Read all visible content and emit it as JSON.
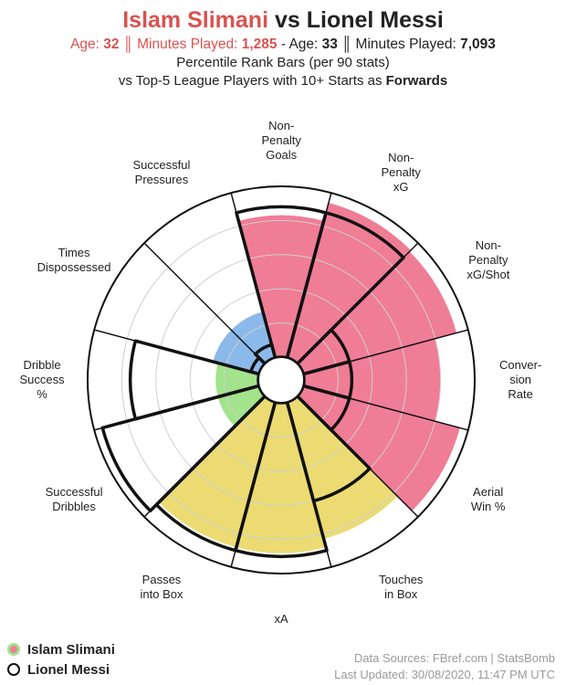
{
  "header": {
    "player1": "Islam Slimani",
    "vs": "vs",
    "player2": "Lionel Messi",
    "age_label": "Age:",
    "p1_age": "32",
    "sep": "║",
    "minutes_label": "Minutes Played:",
    "p1_minutes": "1,285",
    "dash": "-",
    "p2_age": "33",
    "p2_minutes": "7,093",
    "line3": "Percentile Rank Bars (per 90 stats)",
    "line4_prefix": "vs Top-5 League Players with 10+ Starts as",
    "line4_bold": "Forwards"
  },
  "chart_data": {
    "type": "radar",
    "title": "Islam Slimani vs Lionel Messi",
    "scale": [
      0,
      100
    ],
    "categories": [
      "Non-Penalty Goals",
      "Non-Penalty xG",
      "Non-Penalty xG/Shot",
      "Conversion Rate",
      "Aerial Win %",
      "Touches in Box",
      "xA",
      "Passes into Box",
      "Successful Dribbles",
      "Dribble Success %",
      "Times Dispossessed",
      "Successful Pressures"
    ],
    "labels": [
      "Non-\nPenalty\nGoals",
      "Non-\nPenalty\nxG",
      "Non-\nPenalty\nxG/Shot",
      "Conver-\nsion\nRate",
      "Aerial\nWin %",
      "Touches\nin Box",
      "xA",
      "Passes\ninto Box",
      "Successful\nDribbles",
      "Dribble\nSuccess\n%",
      "Times\nDispossessed",
      "Successful\nPressures"
    ],
    "group_colors": [
      "#f07d96",
      "#f07d96",
      "#f07d96",
      "#f07d96",
      "#f07d96",
      "#ebdb72",
      "#ebdb72",
      "#ebdb72",
      "#a2e38c",
      "#a2e38c",
      "#8bb9ea",
      "#8bb9ea"
    ],
    "series": [
      {
        "name": "Islam Slimani",
        "values": [
          83,
          94,
          93,
          80,
          95,
          83,
          88,
          88,
          25,
          25,
          28,
          28
        ]
      },
      {
        "name": "Lionel Messi",
        "values": [
          88,
          88,
          28,
          28,
          28,
          60,
          90,
          90,
          95,
          75,
          5,
          8
        ]
      }
    ],
    "grid": true,
    "legend_position": "bottom-left"
  },
  "legend": [
    {
      "label": "Islam Slimani"
    },
    {
      "label": "Lionel Messi"
    }
  ],
  "sources": {
    "line1": "Data Sources: FBref.com | StatsBomb",
    "line2": "Last Updated: 30/08/2020, 11:47 PM UTC"
  }
}
